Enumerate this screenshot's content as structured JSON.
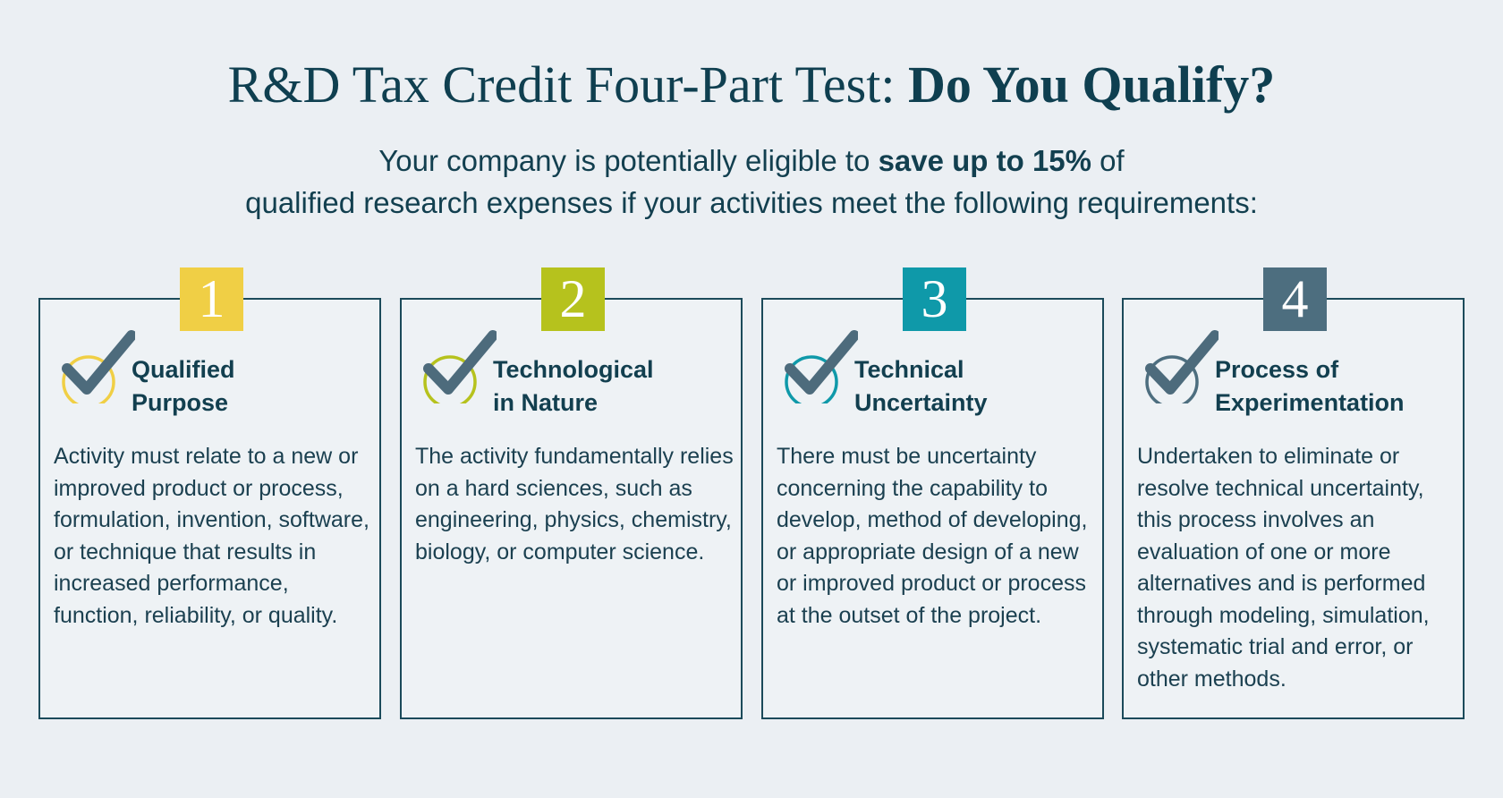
{
  "header": {
    "title_regular": "R&D Tax Credit Four-Part Test:",
    "title_bold": "Do You Qualify?",
    "subtitle_part1": "Your company is potentially eligible to",
    "subtitle_bold": "save up to 15%",
    "subtitle_part2": "of",
    "subtitle_line2": "qualified research expenses if your activities meet the following requirements:"
  },
  "cards": [
    {
      "number": "1",
      "color": "#f0cf45",
      "icon": "checkmark-circle-icon",
      "title_line1": "Qualified",
      "title_line2": "Purpose",
      "body": "Activity must relate to a new or improved product or process, formulation, invention, software, or technique that results in increased performance, function, reliability, or quality."
    },
    {
      "number": "2",
      "color": "#b6c21d",
      "icon": "checkmark-circle-icon",
      "title_line1": "Technological",
      "title_line2": "in Nature",
      "body": "The activity fundamentally relies on a hard sciences, such as engineering, physics, chemistry, biology, or computer science."
    },
    {
      "number": "3",
      "color": "#0f99a9",
      "icon": "checkmark-circle-icon",
      "title_line1": "Technical",
      "title_line2": "Uncertainty",
      "body": "There must be uncertainty concerning the capability to develop, method of developing, or appropriate design of a new or improved product or process at the outset of the project."
    },
    {
      "number": "4",
      "color": "#4d6e7f",
      "icon": "checkmark-circle-icon",
      "title_line1": "Process of",
      "title_line2": "Experimentation",
      "body": "Undertaken to eliminate or resolve technical uncertainty, this process involves an evaluation of one or more alternatives and is performed through modeling, simulation, systematic trial and error, or other methods."
    }
  ]
}
